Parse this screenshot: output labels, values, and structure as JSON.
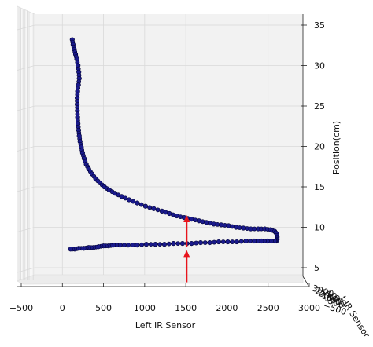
{
  "chart_data": {
    "type": "scatter",
    "title": "",
    "xlabel": "Left IR Sensor",
    "zlabel": "Position(cm)",
    "ylabel_fragment": "t IR Sensor",
    "xlim": [
      -500,
      3000
    ],
    "zlim": [
      4,
      36
    ],
    "x_ticks": [
      -500,
      0,
      500,
      1000,
      1500,
      2000,
      2500,
      3000
    ],
    "z_ticks": [
      5,
      10,
      15,
      20,
      25,
      30,
      35
    ],
    "y_tick_fragments": [
      "3000",
      "2500",
      "2000",
      "1500",
      "1000",
      "500"
    ],
    "grid": true,
    "colors": {
      "marker_fill": "#1a1a8c",
      "marker_edge": "#000033",
      "arrow": "#e8141c",
      "pane": "#f2f2f2"
    },
    "series": [
      {
        "x": [
          120,
          130,
          145,
          160,
          175,
          190,
          200,
          205,
          195,
          185,
          180,
          180,
          182,
          185,
          190,
          198,
          205,
          215,
          230,
          245,
          265,
          290,
          320,
          360,
          405,
          455,
          510,
          570,
          640,
          720,
          810,
          910,
          1010,
          1110,
          1210,
          1300,
          1390,
          1480,
          1570,
          1660,
          1750,
          1840,
          1930,
          2020,
          2110,
          2200,
          2290,
          2380,
          2460,
          2530,
          2580,
          2605,
          2610,
          2610,
          2600,
          2580,
          2540,
          2490,
          2420,
          2330,
          2230,
          2120,
          2010,
          1900,
          1790,
          1680,
          1570,
          1460,
          1350,
          1240,
          1130,
          1020,
          910,
          800,
          700,
          620,
          560,
          500,
          440,
          380,
          320,
          260,
          200,
          150,
          100
        ],
        "z": [
          33.2,
          32.6,
          32.0,
          31.4,
          30.8,
          30.0,
          29.2,
          28.4,
          27.6,
          26.8,
          26.0,
          25.2,
          24.4,
          23.6,
          22.8,
          22.0,
          21.3,
          20.6,
          19.9,
          19.2,
          18.5,
          17.8,
          17.2,
          16.6,
          16.0,
          15.5,
          15.0,
          14.6,
          14.2,
          13.8,
          13.4,
          13.0,
          12.6,
          12.3,
          12.0,
          11.7,
          11.4,
          11.2,
          11.0,
          10.8,
          10.6,
          10.4,
          10.3,
          10.2,
          10.0,
          9.9,
          9.8,
          9.8,
          9.8,
          9.7,
          9.5,
          9.2,
          8.8,
          8.5,
          8.3,
          8.3,
          8.3,
          8.3,
          8.3,
          8.3,
          8.3,
          8.2,
          8.2,
          8.2,
          8.1,
          8.1,
          8.0,
          8.0,
          8.0,
          7.9,
          7.9,
          7.9,
          7.8,
          7.8,
          7.8,
          7.8,
          7.7,
          7.7,
          7.6,
          7.5,
          7.5,
          7.4,
          7.4,
          7.3,
          7.3
        ]
      }
    ],
    "annotations": [
      {
        "type": "arrow",
        "x": 1510,
        "z_from": 3.2,
        "z_to": 7.2
      },
      {
        "type": "arrow",
        "x": 1510,
        "z_from": 7.6,
        "z_to": 11.5
      }
    ]
  }
}
